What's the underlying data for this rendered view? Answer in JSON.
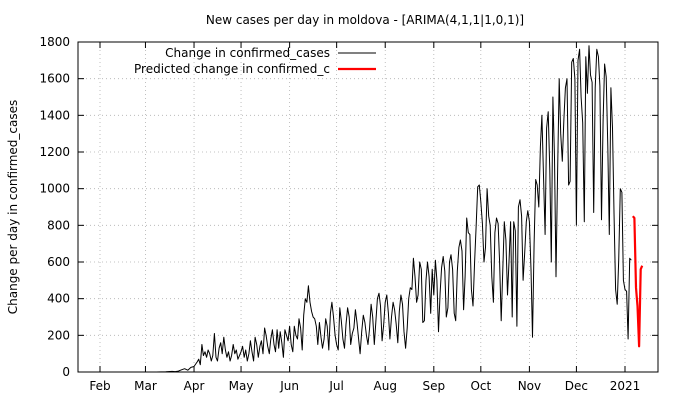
{
  "chart_data": {
    "type": "line",
    "title": "New cases per day in moldova -  [ARIMA(4,1,1|1,0,1)]",
    "xlabel": "",
    "ylabel": "Change per day in confirmed_cases",
    "ylim": [
      0,
      1800
    ],
    "xlim_days": [
      0,
      346
    ],
    "yticks": [
      0,
      200,
      400,
      600,
      800,
      1000,
      1200,
      1400,
      1600,
      1800
    ],
    "grid": true,
    "legend_position": "top-left",
    "xticks": [
      {
        "label": "Feb",
        "day": 0
      },
      {
        "label": "Mar",
        "day": 29
      },
      {
        "label": "Apr",
        "day": 60
      },
      {
        "label": "May",
        "day": 90
      },
      {
        "label": "Jun",
        "day": 121
      },
      {
        "label": "Jul",
        "day": 151
      },
      {
        "label": "Aug",
        "day": 182
      },
      {
        "label": "Sep",
        "day": 213
      },
      {
        "label": "Oct",
        "day": 243
      },
      {
        "label": "Nov",
        "day": 274
      },
      {
        "label": "Dec",
        "day": 304
      },
      {
        "label": "2021",
        "day": 335
      }
    ],
    "series": [
      {
        "name": "Change in confirmed_cases",
        "color": "#000000",
        "points": [
          [
            36,
            0
          ],
          [
            42,
            1
          ],
          [
            46,
            3
          ],
          [
            48,
            2
          ],
          [
            50,
            5
          ],
          [
            52,
            12
          ],
          [
            54,
            18
          ],
          [
            56,
            10
          ],
          [
            58,
            25
          ],
          [
            60,
            30
          ],
          [
            62,
            55
          ],
          [
            63,
            70
          ],
          [
            64,
            40
          ],
          [
            65,
            150
          ],
          [
            66,
            90
          ],
          [
            67,
            110
          ],
          [
            68,
            80
          ],
          [
            69,
            120
          ],
          [
            70,
            100
          ],
          [
            71,
            60
          ],
          [
            72,
            90
          ],
          [
            73,
            210
          ],
          [
            74,
            80
          ],
          [
            75,
            60
          ],
          [
            76,
            130
          ],
          [
            77,
            160
          ],
          [
            78,
            100
          ],
          [
            79,
            190
          ],
          [
            80,
            120
          ],
          [
            81,
            80
          ],
          [
            82,
            110
          ],
          [
            83,
            60
          ],
          [
            84,
            90
          ],
          [
            85,
            150
          ],
          [
            86,
            100
          ],
          [
            87,
            120
          ],
          [
            88,
            70
          ],
          [
            89,
            90
          ],
          [
            90,
            110
          ],
          [
            91,
            140
          ],
          [
            92,
            80
          ],
          [
            93,
            120
          ],
          [
            94,
            60
          ],
          [
            95,
            100
          ],
          [
            96,
            170
          ],
          [
            97,
            110
          ],
          [
            98,
            60
          ],
          [
            99,
            190
          ],
          [
            100,
            150
          ],
          [
            101,
            80
          ],
          [
            102,
            140
          ],
          [
            103,
            170
          ],
          [
            104,
            100
          ],
          [
            105,
            240
          ],
          [
            106,
            200
          ],
          [
            107,
            140
          ],
          [
            108,
            100
          ],
          [
            109,
            180
          ],
          [
            110,
            230
          ],
          [
            111,
            150
          ],
          [
            112,
            110
          ],
          [
            113,
            230
          ],
          [
            114,
            130
          ],
          [
            115,
            220
          ],
          [
            116,
            160
          ],
          [
            117,
            80
          ],
          [
            118,
            230
          ],
          [
            119,
            200
          ],
          [
            120,
            170
          ],
          [
            121,
            250
          ],
          [
            122,
            150
          ],
          [
            123,
            110
          ],
          [
            124,
            250
          ],
          [
            125,
            200
          ],
          [
            126,
            180
          ],
          [
            127,
            290
          ],
          [
            128,
            240
          ],
          [
            129,
            120
          ],
          [
            130,
            310
          ],
          [
            131,
            400
          ],
          [
            132,
            380
          ],
          [
            133,
            470
          ],
          [
            134,
            380
          ],
          [
            135,
            330
          ],
          [
            136,
            300
          ],
          [
            137,
            290
          ],
          [
            138,
            250
          ],
          [
            139,
            150
          ],
          [
            140,
            270
          ],
          [
            141,
            190
          ],
          [
            142,
            130
          ],
          [
            143,
            180
          ],
          [
            144,
            290
          ],
          [
            145,
            250
          ],
          [
            146,
            120
          ],
          [
            147,
            320
          ],
          [
            148,
            380
          ],
          [
            149,
            300
          ],
          [
            150,
            200
          ],
          [
            151,
            150
          ],
          [
            152,
            120
          ],
          [
            153,
            350
          ],
          [
            154,
            280
          ],
          [
            155,
            180
          ],
          [
            156,
            130
          ],
          [
            157,
            260
          ],
          [
            158,
            350
          ],
          [
            159,
            300
          ],
          [
            160,
            150
          ],
          [
            161,
            210
          ],
          [
            162,
            240
          ],
          [
            163,
            340
          ],
          [
            164,
            270
          ],
          [
            165,
            180
          ],
          [
            166,
            100
          ],
          [
            167,
            220
          ],
          [
            168,
            310
          ],
          [
            169,
            270
          ],
          [
            170,
            200
          ],
          [
            171,
            150
          ],
          [
            172,
            240
          ],
          [
            173,
            370
          ],
          [
            174,
            300
          ],
          [
            175,
            150
          ],
          [
            176,
            270
          ],
          [
            177,
            400
          ],
          [
            178,
            430
          ],
          [
            179,
            360
          ],
          [
            180,
            170
          ],
          [
            181,
            260
          ],
          [
            182,
            380
          ],
          [
            183,
            420
          ],
          [
            184,
            320
          ],
          [
            185,
            180
          ],
          [
            186,
            300
          ],
          [
            187,
            380
          ],
          [
            188,
            340
          ],
          [
            189,
            260
          ],
          [
            190,
            160
          ],
          [
            191,
            330
          ],
          [
            192,
            420
          ],
          [
            193,
            370
          ],
          [
            194,
            220
          ],
          [
            195,
            130
          ],
          [
            196,
            240
          ],
          [
            197,
            400
          ],
          [
            198,
            460
          ],
          [
            199,
            450
          ],
          [
            200,
            620
          ],
          [
            201,
            520
          ],
          [
            202,
            380
          ],
          [
            203,
            420
          ],
          [
            204,
            600
          ],
          [
            205,
            560
          ],
          [
            206,
            270
          ],
          [
            207,
            280
          ],
          [
            208,
            500
          ],
          [
            209,
            600
          ],
          [
            210,
            520
          ],
          [
            211,
            320
          ],
          [
            212,
            560
          ],
          [
            213,
            420
          ],
          [
            214,
            610
          ],
          [
            215,
            500
          ],
          [
            216,
            220
          ],
          [
            217,
            430
          ],
          [
            218,
            570
          ],
          [
            219,
            630
          ],
          [
            220,
            550
          ],
          [
            221,
            300
          ],
          [
            222,
            350
          ],
          [
            223,
            600
          ],
          [
            224,
            640
          ],
          [
            225,
            560
          ],
          [
            226,
            320
          ],
          [
            227,
            280
          ],
          [
            228,
            550
          ],
          [
            229,
            680
          ],
          [
            230,
            720
          ],
          [
            231,
            660
          ],
          [
            232,
            340
          ],
          [
            233,
            520
          ],
          [
            234,
            840
          ],
          [
            235,
            760
          ],
          [
            236,
            750
          ],
          [
            237,
            450
          ],
          [
            238,
            360
          ],
          [
            239,
            600
          ],
          [
            240,
            790
          ],
          [
            241,
            1010
          ],
          [
            242,
            1020
          ],
          [
            243,
            930
          ],
          [
            244,
            810
          ],
          [
            245,
            600
          ],
          [
            246,
            680
          ],
          [
            247,
            1000
          ],
          [
            248,
            850
          ],
          [
            249,
            800
          ],
          [
            250,
            520
          ],
          [
            251,
            380
          ],
          [
            252,
            760
          ],
          [
            253,
            840
          ],
          [
            254,
            810
          ],
          [
            255,
            600
          ],
          [
            256,
            280
          ],
          [
            257,
            560
          ],
          [
            258,
            820
          ],
          [
            259,
            720
          ],
          [
            260,
            420
          ],
          [
            261,
            600
          ],
          [
            262,
            820
          ],
          [
            263,
            300
          ],
          [
            264,
            820
          ],
          [
            265,
            770
          ],
          [
            266,
            250
          ],
          [
            267,
            900
          ],
          [
            268,
            940
          ],
          [
            269,
            850
          ],
          [
            270,
            500
          ],
          [
            271,
            650
          ],
          [
            272,
            820
          ],
          [
            273,
            880
          ],
          [
            274,
            820
          ],
          [
            275,
            560
          ],
          [
            276,
            190
          ],
          [
            277,
            700
          ],
          [
            278,
            1050
          ],
          [
            279,
            1020
          ],
          [
            280,
            900
          ],
          [
            281,
            1230
          ],
          [
            282,
            1400
          ],
          [
            283,
            1070
          ],
          [
            284,
            750
          ],
          [
            285,
            1330
          ],
          [
            286,
            1420
          ],
          [
            287,
            1100
          ],
          [
            288,
            600
          ],
          [
            289,
            1500
          ],
          [
            290,
            1170
          ],
          [
            291,
            520
          ],
          [
            292,
            1090
          ],
          [
            293,
            1600
          ],
          [
            294,
            1300
          ],
          [
            295,
            1150
          ],
          [
            296,
            1380
          ],
          [
            297,
            1550
          ],
          [
            298,
            1600
          ],
          [
            299,
            1020
          ],
          [
            300,
            1040
          ],
          [
            301,
            1690
          ],
          [
            302,
            1710
          ],
          [
            303,
            1600
          ],
          [
            304,
            800
          ],
          [
            305,
            1700
          ],
          [
            306,
            1760
          ],
          [
            307,
            1500
          ],
          [
            308,
            1360
          ],
          [
            309,
            820
          ],
          [
            310,
            1720
          ],
          [
            311,
            1520
          ],
          [
            312,
            1780
          ],
          [
            313,
            1620
          ],
          [
            314,
            1580
          ],
          [
            315,
            870
          ],
          [
            316,
            1550
          ],
          [
            317,
            1760
          ],
          [
            318,
            1720
          ],
          [
            319,
            1560
          ],
          [
            320,
            830
          ],
          [
            321,
            1370
          ],
          [
            322,
            1680
          ],
          [
            323,
            1610
          ],
          [
            324,
            1230
          ],
          [
            325,
            750
          ],
          [
            326,
            1550
          ],
          [
            327,
            1330
          ],
          [
            328,
            870
          ],
          [
            329,
            450
          ],
          [
            330,
            370
          ],
          [
            331,
            610
          ],
          [
            332,
            1000
          ],
          [
            333,
            980
          ],
          [
            334,
            500
          ],
          [
            335,
            450
          ],
          [
            336,
            440
          ],
          [
            337,
            180
          ],
          [
            338,
            620
          ],
          [
            339,
            610
          ]
        ]
      },
      {
        "name": "Predicted change in confirmed_c",
        "color": "#ff0000",
        "points": [
          [
            340,
            850
          ],
          [
            341,
            840
          ],
          [
            342,
            460
          ],
          [
            343,
            360
          ],
          [
            344,
            140
          ],
          [
            345,
            560
          ],
          [
            346,
            580
          ]
        ]
      }
    ]
  }
}
